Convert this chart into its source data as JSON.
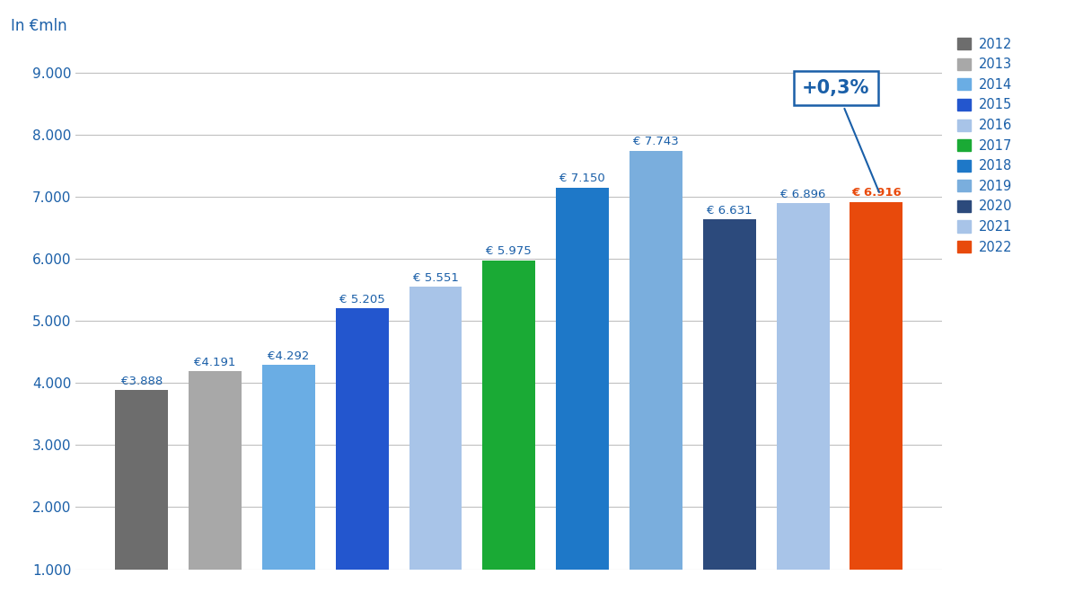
{
  "years": [
    "2012",
    "2013",
    "2014",
    "2015",
    "2016",
    "2017",
    "2018",
    "2019",
    "2020",
    "2021",
    "2022"
  ],
  "values": [
    3888,
    4191,
    4292,
    5205,
    5551,
    5975,
    7150,
    7743,
    6631,
    6896,
    6916
  ],
  "colors": [
    "#6d6d6d",
    "#a8a8a8",
    "#6aade4",
    "#2356ce",
    "#a8c4e8",
    "#1aaa35",
    "#1e78c8",
    "#7aaedd",
    "#2c4a7c",
    "#a8c4e8",
    "#e84a0c"
  ],
  "bar_labels": [
    "€3.888",
    "€4.191",
    "€4.292",
    "€ 5.205",
    "€ 5.551",
    "€ 5.975",
    "€ 7.150",
    "€ 7.743",
    "€ 6.631",
    "€ 6.896",
    "€ 6.916"
  ],
  "label_colors": [
    "#1a5fa8",
    "#1a5fa8",
    "#1a5fa8",
    "#1a5fa8",
    "#1a5fa8",
    "#1a5fa8",
    "#1a5fa8",
    "#1a5fa8",
    "#1a5fa8",
    "#1a5fa8",
    "#e84a0c"
  ],
  "label_bold": [
    false,
    false,
    false,
    false,
    false,
    false,
    false,
    false,
    false,
    false,
    true
  ],
  "ylabel_text": "In €mln",
  "ylim": [
    1000,
    9500
  ],
  "yticks": [
    1000,
    2000,
    3000,
    4000,
    5000,
    6000,
    7000,
    8000,
    9000
  ],
  "ytick_labels": [
    "1.000",
    "2.000",
    "3.000",
    "4.000",
    "5.000",
    "6.000",
    "7.000",
    "8.000",
    "9.000"
  ],
  "annotation_text": "+0,3%",
  "annotation_color": "#1a5fa8",
  "background_color": "#ffffff",
  "grid_color": "#c0c0c0",
  "legend_years": [
    "2012",
    "2013",
    "2014",
    "2015",
    "2016",
    "2017",
    "2018",
    "2019",
    "2020",
    "2021",
    "2022"
  ],
  "legend_colors": [
    "#6d6d6d",
    "#a8a8a8",
    "#6aade4",
    "#2356ce",
    "#a8c4e8",
    "#1aaa35",
    "#1e78c8",
    "#7aaedd",
    "#2c4a7c",
    "#a8c4e8",
    "#e84a0c"
  ]
}
